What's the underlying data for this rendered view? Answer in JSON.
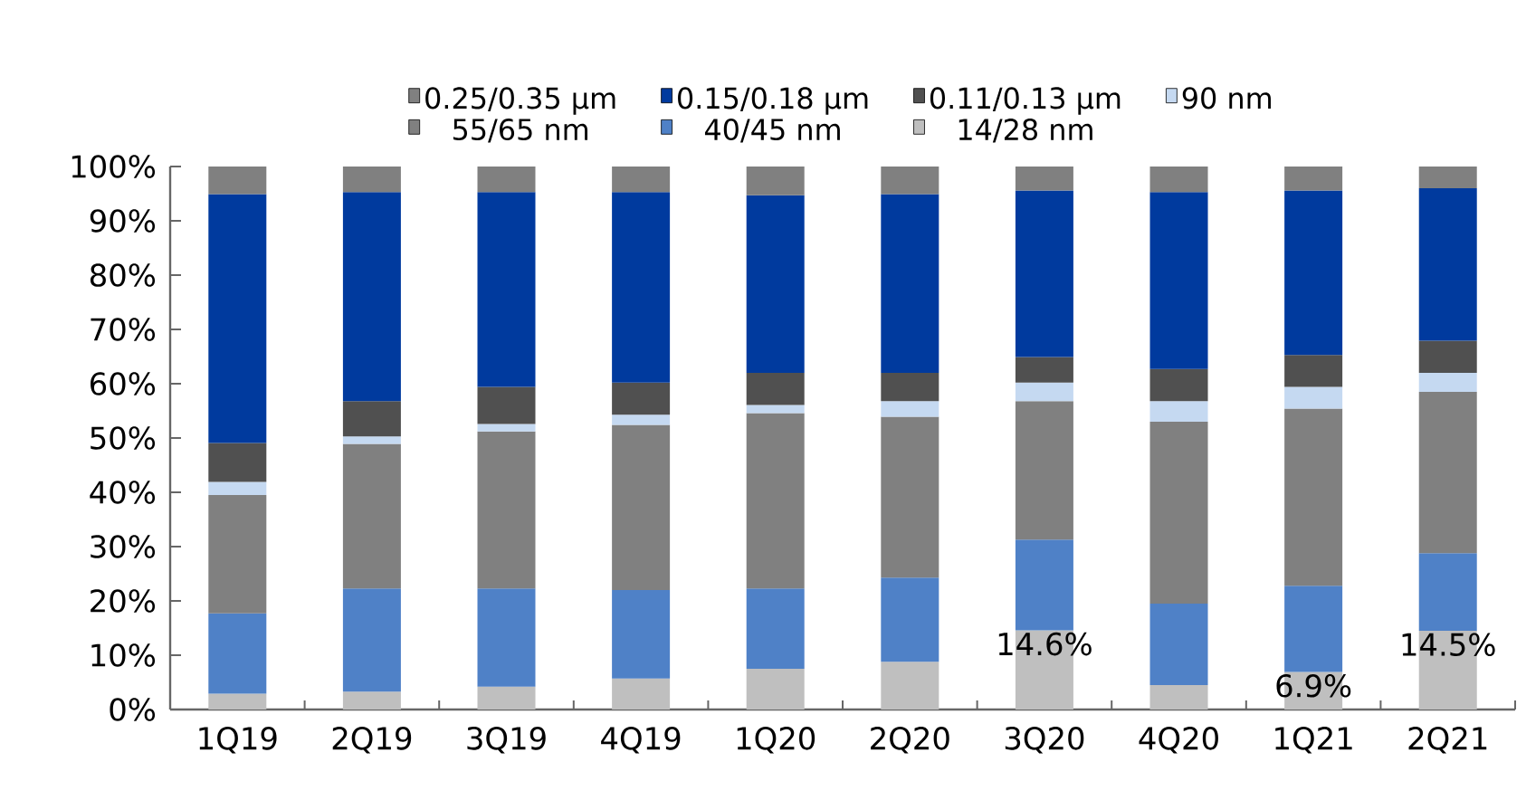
{
  "chart_data": {
    "type": "bar",
    "stacked": true,
    "legend": "top",
    "grid": false,
    "categories": [
      "1Q19",
      "2Q19",
      "3Q19",
      "4Q19",
      "1Q20",
      "2Q20",
      "3Q20",
      "4Q20",
      "1Q21",
      "2Q21"
    ],
    "ylim": [
      0,
      100
    ],
    "yticks": [
      {
        "value": 0,
        "label": "0%"
      },
      {
        "value": 10,
        "label": "10%"
      },
      {
        "value": 20,
        "label": "20%"
      },
      {
        "value": 30,
        "label": "30%"
      },
      {
        "value": 40,
        "label": "40%"
      },
      {
        "value": 50,
        "label": "50%"
      },
      {
        "value": 60,
        "label": "60%"
      },
      {
        "value": 70,
        "label": "70%"
      },
      {
        "value": 80,
        "label": "80%"
      },
      {
        "value": 90,
        "label": "90%"
      },
      {
        "value": 100,
        "label": "100%"
      }
    ],
    "series": [
      {
        "name": "14/28 nm",
        "color": "#bfbfbf",
        "values": [
          2.9,
          3.3,
          4.2,
          5.7,
          7.5,
          8.8,
          14.6,
          4.5,
          6.9,
          14.5
        ],
        "value_labels": [
          null,
          null,
          null,
          null,
          null,
          null,
          "14.6%",
          null,
          "6.9%",
          "14.5%"
        ]
      },
      {
        "name": "40/45 nm",
        "color": "#4f81c7",
        "values": [
          14.8,
          19.0,
          18.1,
          16.3,
          14.8,
          15.5,
          16.7,
          15.0,
          15.9,
          14.3
        ]
      },
      {
        "name": "55/65 nm",
        "color": "#808080",
        "values": [
          21.8,
          26.6,
          28.9,
          30.4,
          32.3,
          29.6,
          25.5,
          33.5,
          32.6,
          29.7
        ]
      },
      {
        "name": "90 nm",
        "color": "#c5d9f1",
        "values": [
          2.4,
          1.4,
          1.4,
          1.9,
          1.5,
          2.9,
          3.4,
          3.8,
          4.0,
          3.5
        ]
      },
      {
        "name": "0.11/0.13 µm",
        "color": "#505050",
        "values": [
          7.2,
          6.5,
          6.8,
          5.9,
          5.9,
          5.2,
          4.7,
          5.9,
          5.9,
          5.9
        ]
      },
      {
        "name": "0.15/0.18 µm",
        "color": "#003a9e",
        "values": [
          45.8,
          38.5,
          35.9,
          35.1,
          32.7,
          32.9,
          30.7,
          32.6,
          30.3,
          28.1
        ]
      },
      {
        "name": "0.25/0.35 µm",
        "color": "#808080",
        "values": [
          5.1,
          4.7,
          4.7,
          4.7,
          5.3,
          5.1,
          4.4,
          4.7,
          4.4,
          4.0
        ]
      }
    ]
  }
}
